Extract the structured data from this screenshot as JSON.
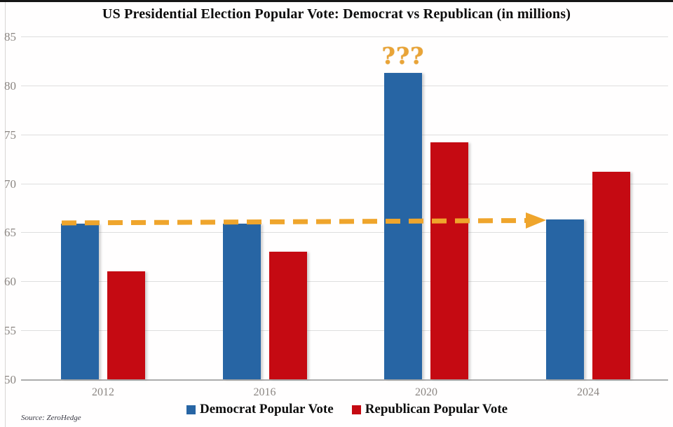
{
  "title": "US Presidential Election Popular Vote: Democrat vs Republican (in millions)",
  "source_note": "Source: ZeroHedge",
  "annotations": {
    "question_marks": "???"
  },
  "colors": {
    "democrat": "#2765a4",
    "republican": "#c50a12",
    "arrow": "#efa52c",
    "annotation": "#e9a437",
    "gridline": "#dedede",
    "axis_line": "#acacac",
    "tick_text": "#8b8682"
  },
  "chart_data": {
    "type": "bar",
    "title": "US Presidential Election Popular Vote: Democrat vs Republican (in millions)",
    "categories": [
      "2012",
      "2016",
      "2020",
      "2024"
    ],
    "series": [
      {
        "name": "Democrat Popular Vote",
        "color": "#2765a4",
        "values": [
          65.9,
          65.9,
          81.3,
          66.3
        ]
      },
      {
        "name": "Republican Popular Vote",
        "color": "#c50a12",
        "values": [
          61.0,
          63.0,
          74.2,
          71.2
        ]
      }
    ],
    "xlabel": "",
    "ylabel": "",
    "ylim": [
      50,
      85
    ],
    "y_ticks": [
      85,
      80,
      75,
      70,
      65,
      60,
      55,
      50
    ],
    "grid": true,
    "legend_position": "bottom",
    "annotation_text": "???",
    "annotation_target": "2020 Democrat bar",
    "arrow": "horizontal dashed arrow from 2012 Democrat bar top (65.9) to 2024 Democrat bar top (66.3)"
  }
}
